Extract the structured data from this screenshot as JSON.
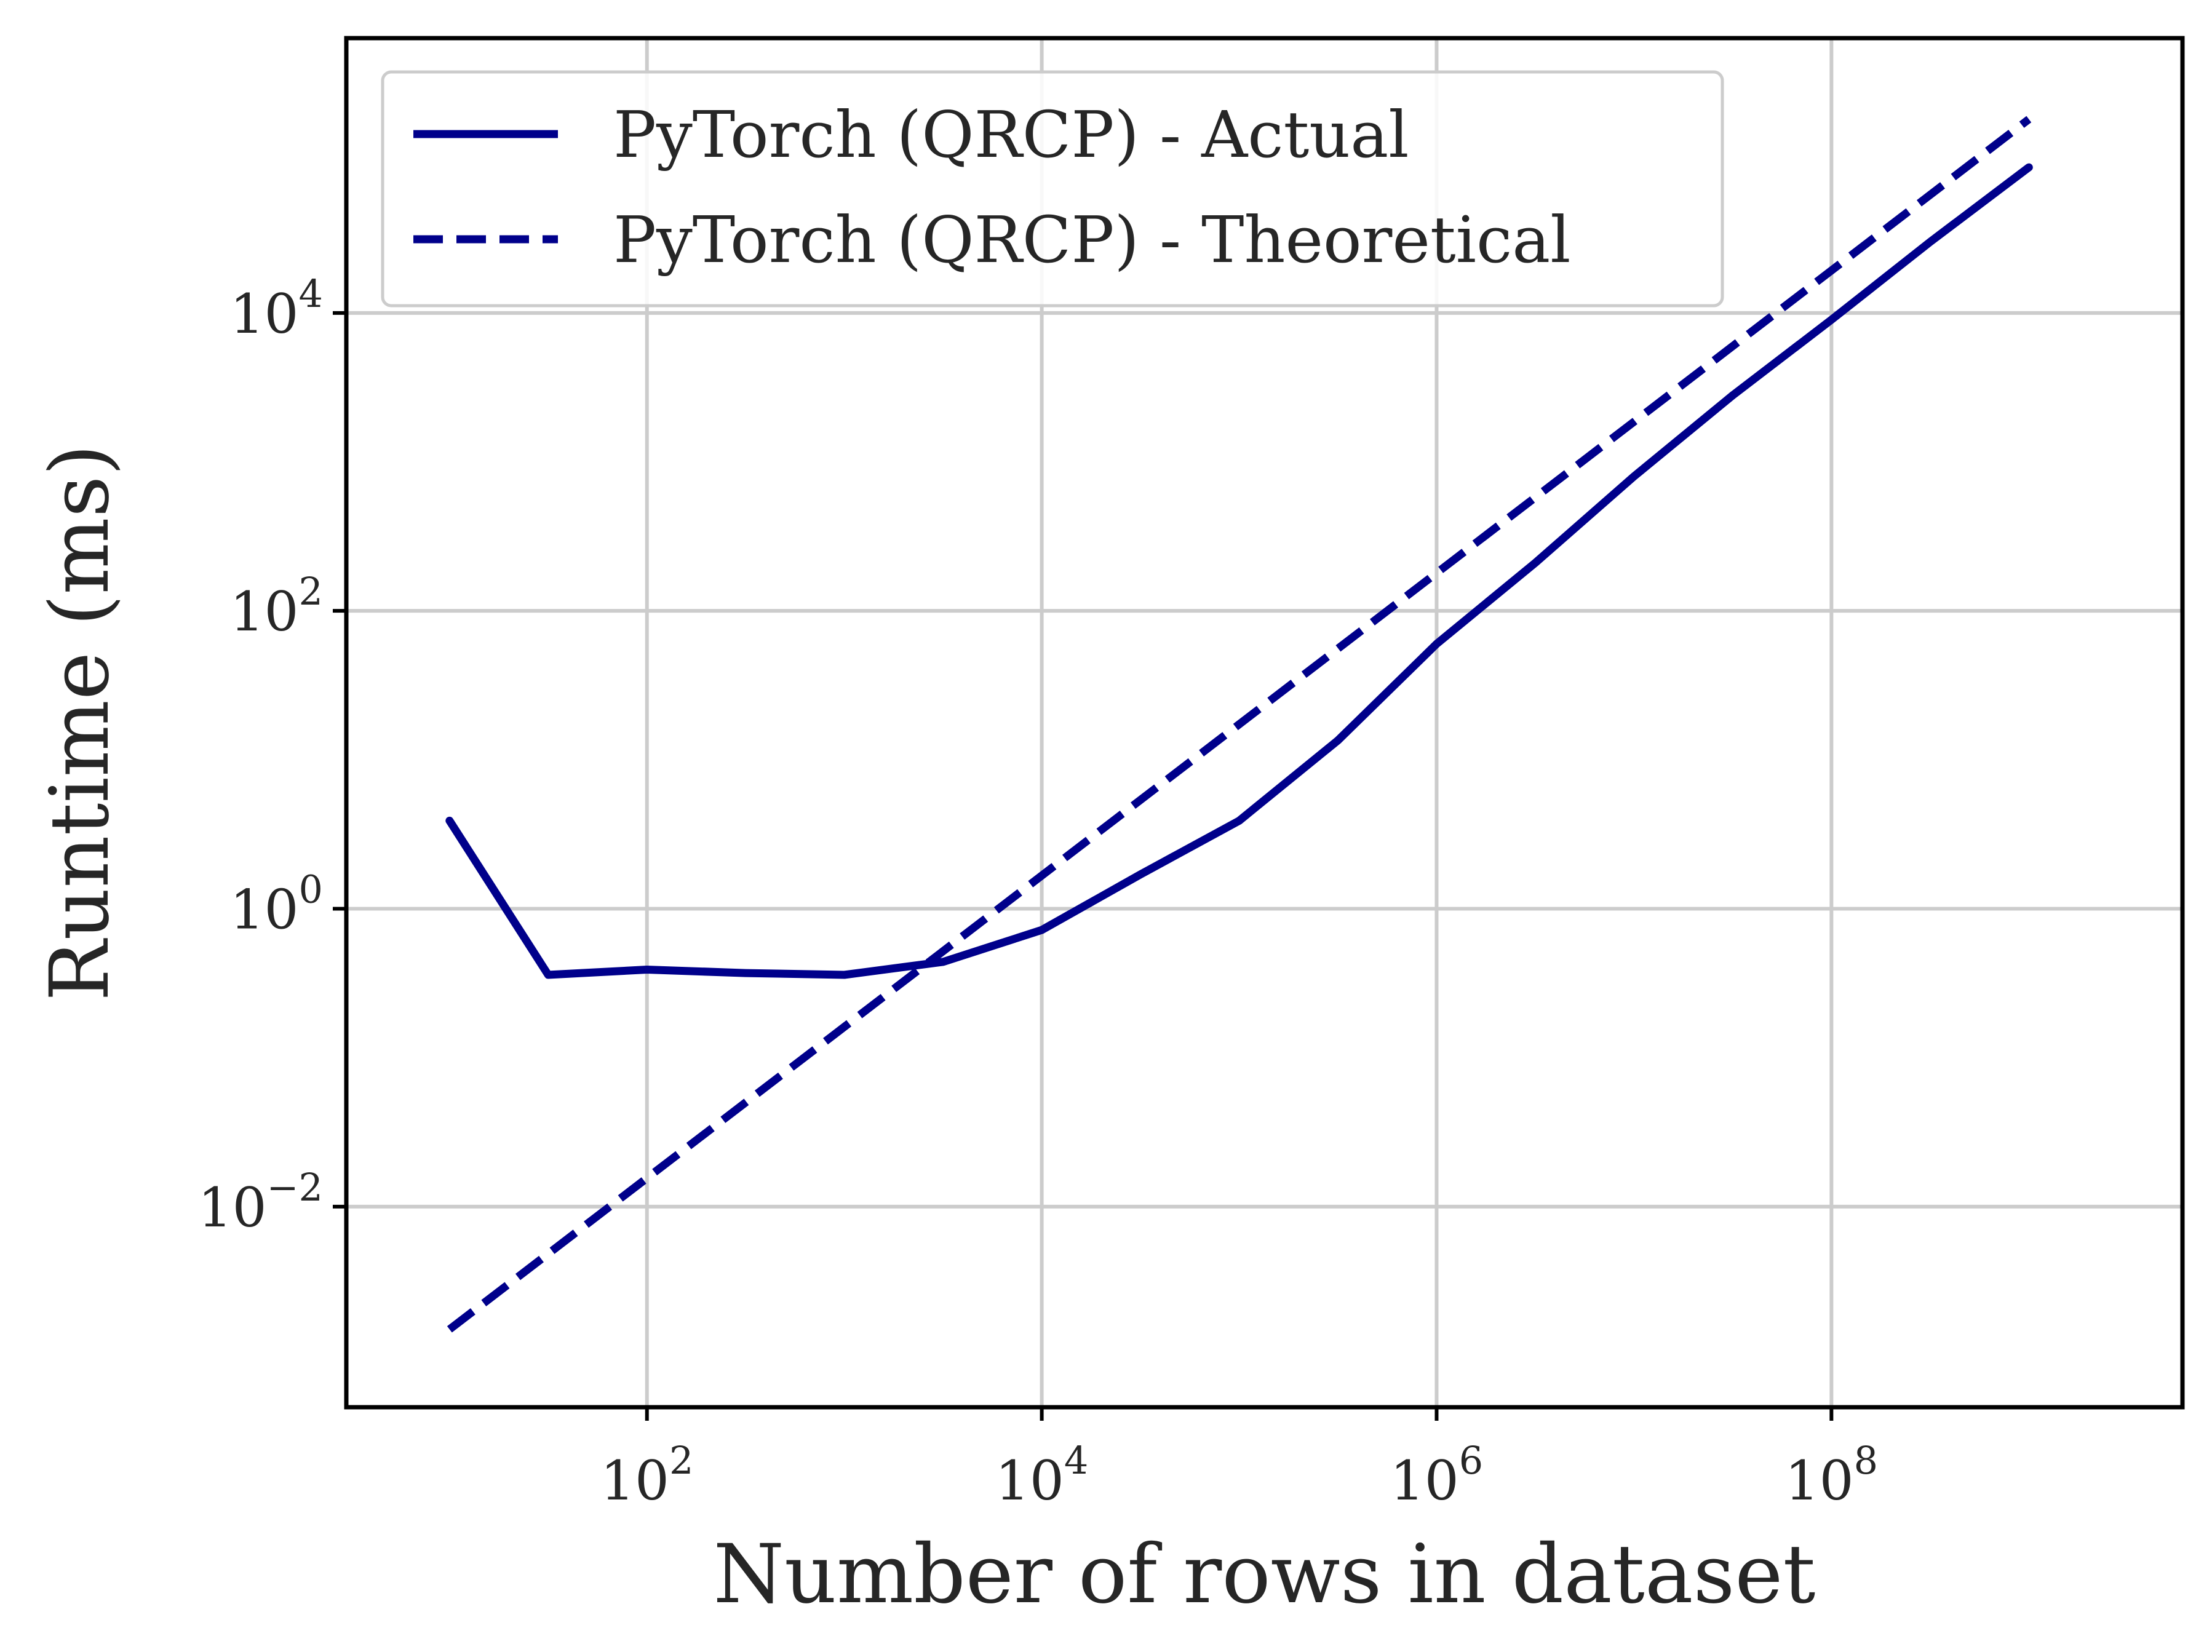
{
  "chart_data": {
    "type": "line",
    "title": "",
    "xlabel": "Number of rows in dataset",
    "ylabel": "Runtime (ms)",
    "xscale": "log",
    "yscale": "log",
    "xlim": [
      3,
      6000000000
    ],
    "ylim": [
      0.00045,
      700000
    ],
    "grid": true,
    "legend_position": "top-left",
    "x_ticks": [
      {
        "value": 100,
        "base": "10",
        "exp": "2"
      },
      {
        "value": 10000,
        "base": "10",
        "exp": "4"
      },
      {
        "value": 1000000,
        "base": "10",
        "exp": "6"
      },
      {
        "value": 100000000,
        "base": "10",
        "exp": "8"
      }
    ],
    "y_ticks": [
      {
        "value": 0.01,
        "base": "10",
        "exp": "−2"
      },
      {
        "value": 1,
        "base": "10",
        "exp": "0"
      },
      {
        "value": 100,
        "base": "10",
        "exp": "2"
      },
      {
        "value": 10000,
        "base": "10",
        "exp": "4"
      }
    ],
    "series": [
      {
        "name": "PyTorch (QRCP) - Actual",
        "style": "solid",
        "color": "#00008b",
        "x": [
          10,
          31.6,
          100,
          316,
          1000,
          3162,
          10000,
          31623,
          100000,
          316228,
          1000000,
          3162278,
          10000000,
          31622777,
          100000000,
          316227766,
          1000000000
        ],
        "y": [
          3.9,
          0.36,
          0.39,
          0.37,
          0.36,
          0.44,
          0.72,
          1.7,
          3.9,
          13.5,
          60,
          210,
          800,
          2800,
          9000,
          30000,
          95000
        ]
      },
      {
        "name": "PyTorch (QRCP) - Theoretical",
        "style": "dashed",
        "color": "#00008b",
        "x": [
          10,
          1000000000
        ],
        "y": [
          0.0015,
          200000
        ]
      }
    ]
  }
}
